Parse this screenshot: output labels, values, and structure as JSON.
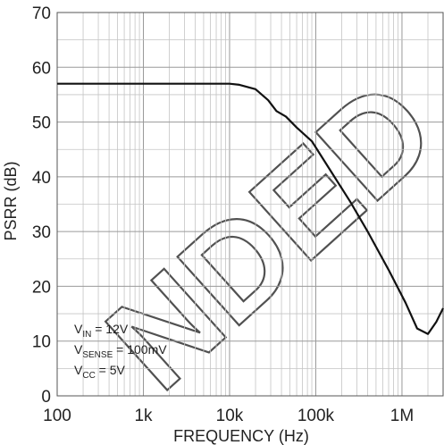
{
  "chart_data": {
    "type": "line",
    "xscale": "log",
    "xlim": [
      100,
      3000000
    ],
    "ylim": [
      0,
      70
    ],
    "xlabel": "FREQUENCY (Hz)",
    "ylabel": "PSRR (dB)",
    "xticks": [
      {
        "value": 100,
        "label": "100"
      },
      {
        "value": 1000,
        "label": "1k"
      },
      {
        "value": 10000,
        "label": "10k"
      },
      {
        "value": 100000,
        "label": "100k"
      },
      {
        "value": 1000000,
        "label": "1M"
      }
    ],
    "yticks": [
      0,
      10,
      20,
      30,
      40,
      50,
      60,
      70
    ],
    "grid": true,
    "series": [
      {
        "color": "#111111",
        "x": [
          100,
          1000,
          10000,
          13000,
          20000,
          28000,
          35000,
          45000,
          60000,
          90000,
          150000,
          250000,
          400000,
          700000,
          1100000,
          1500000,
          2000000,
          2500000,
          3000000
        ],
        "y": [
          57,
          57,
          57,
          56.8,
          56,
          54,
          52,
          51,
          49,
          46.5,
          41,
          35.5,
          30,
          23,
          17,
          12.3,
          11.3,
          13.5,
          16
        ]
      }
    ],
    "annotation": {
      "lines": [
        {
          "main": "V",
          "sub": "IN",
          "rest": " = 12V"
        },
        {
          "main": "V",
          "sub": "SENSE",
          "rest": " = 100mV"
        },
        {
          "main": "V",
          "sub": "CC",
          "rest": " = 5V"
        }
      ]
    },
    "watermark": "NDED"
  }
}
